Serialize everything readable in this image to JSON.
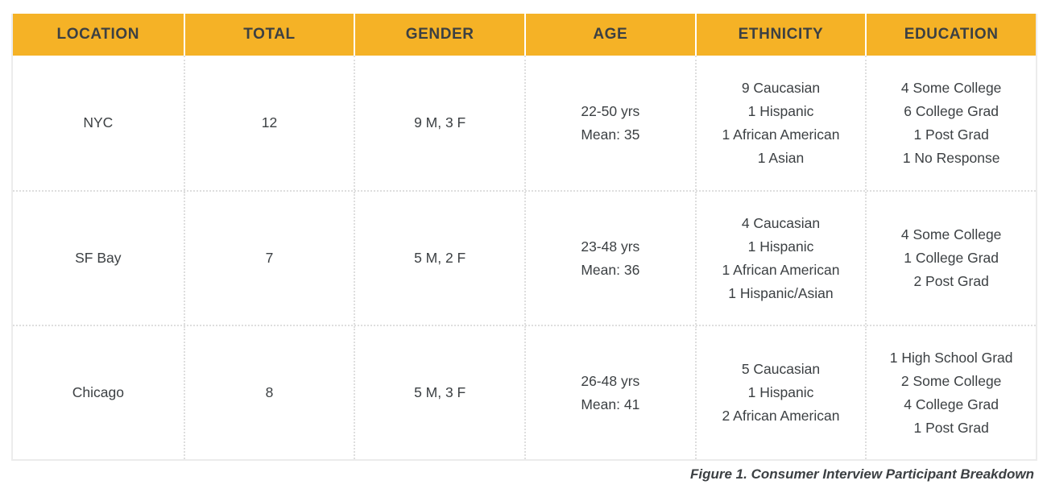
{
  "table": {
    "headers": [
      "LOCATION",
      "TOTAL",
      "GENDER",
      "AGE",
      "ETHNICITY",
      "EDUCATION"
    ],
    "rows": [
      {
        "location": "NYC",
        "total": "12",
        "gender": "9 M, 3 F",
        "age": [
          "22-50 yrs",
          "Mean: 35"
        ],
        "ethnicity": [
          "9 Caucasian",
          "1 Hispanic",
          "1 African American",
          "1 Asian"
        ],
        "education": [
          "4 Some College",
          "6 College Grad",
          "1 Post Grad",
          "1 No Response"
        ]
      },
      {
        "location": "SF Bay",
        "total": "7",
        "gender": "5 M, 2 F",
        "age": [
          "23-48 yrs",
          "Mean: 36"
        ],
        "ethnicity": [
          "4 Caucasian",
          "1 Hispanic",
          "1 African American",
          "1 Hispanic/Asian"
        ],
        "education": [
          "4 Some College",
          "1 College Grad",
          "2 Post Grad"
        ]
      },
      {
        "location": "Chicago",
        "total": "8",
        "gender": "5 M, 3 F",
        "age": [
          "26-48 yrs",
          "Mean: 41"
        ],
        "ethnicity": [
          "5 Caucasian",
          "1 Hispanic",
          "2 African American"
        ],
        "education": [
          "1 High School Grad",
          "2 Some College",
          "4 College Grad",
          "1 Post Grad"
        ]
      }
    ]
  },
  "caption": "Figure 1. Consumer Interview Participant Breakdown",
  "colors": {
    "header_bg": "#F5B226",
    "header_text": "#3C4043",
    "body_text": "#3C4043",
    "border": "#ECECEC",
    "divider": "#DEDEDE"
  }
}
